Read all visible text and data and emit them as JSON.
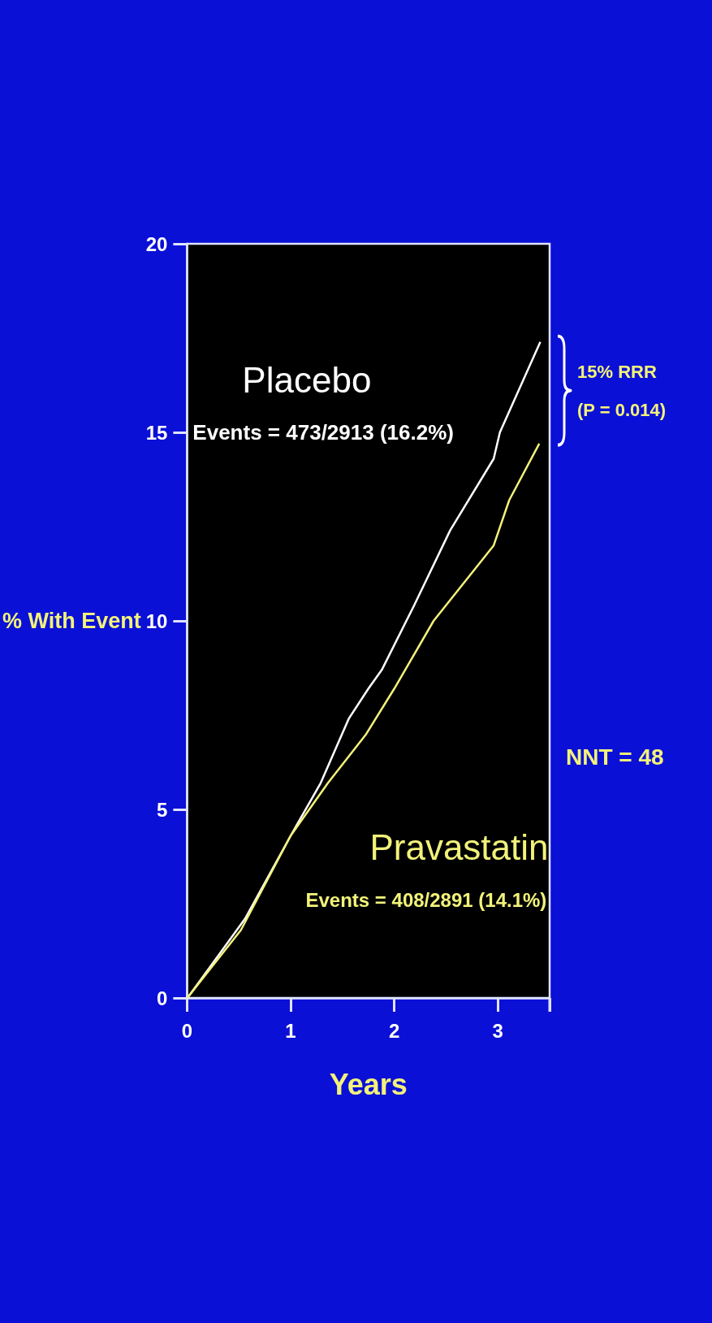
{
  "chart_data": {
    "type": "line",
    "xlabel": "Years",
    "ylabel": "% With Event",
    "xlim": [
      0,
      3.5
    ],
    "xticks": [
      0,
      1,
      2,
      3,
      {
        "value": 3.5,
        "label": null
      }
    ],
    "ylim": [
      0,
      20
    ],
    "yticks": [
      0,
      5,
      10,
      15,
      20
    ],
    "series": [
      {
        "name": "Placebo",
        "color": "#ffffff",
        "x": [
          0,
          0.02,
          0.56,
          1.0,
          1.29,
          1.56,
          1.75,
          1.88,
          2.19,
          2.54,
          2.96,
          3.02,
          3.41
        ],
        "values": [
          0,
          0.06,
          2.1,
          4.3,
          5.7,
          7.4,
          8.2,
          8.7,
          10.4,
          12.4,
          14.3,
          15.0,
          17.4
        ]
      },
      {
        "name": "Pravastatin",
        "color": "#f2f27a",
        "x": [
          0,
          0.02,
          0.52,
          1.0,
          1.36,
          1.73,
          2.0,
          2.38,
          2.96,
          3.11,
          3.4
        ],
        "values": [
          0,
          0.06,
          1.8,
          4.3,
          5.7,
          7.0,
          8.2,
          10.0,
          12.0,
          13.2,
          14.7
        ]
      }
    ],
    "annotations": [
      "Events = 473/2913 (16.2%)",
      "Events = 408/2891 (14.1%)",
      "15% RRR",
      "(P = 0.014)",
      "NNT = 48"
    ]
  }
}
